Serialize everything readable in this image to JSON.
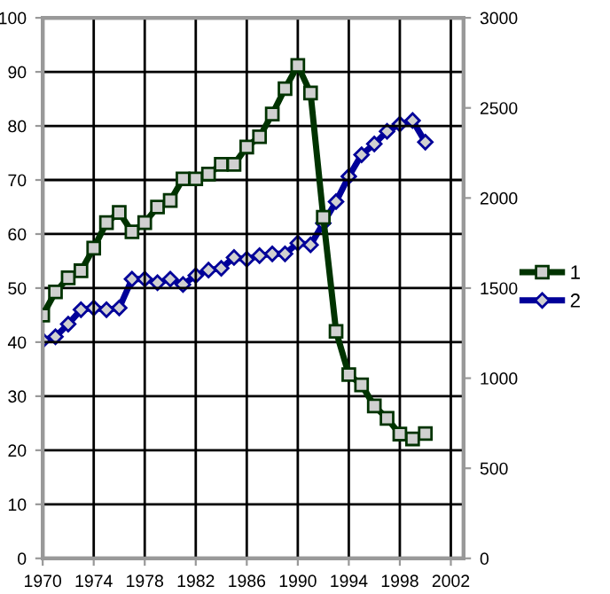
{
  "chart_data": {
    "type": "line",
    "x": [
      1970,
      1971,
      1972,
      1973,
      1974,
      1975,
      1976,
      1977,
      1978,
      1979,
      1980,
      1981,
      1982,
      1983,
      1984,
      1985,
      1986,
      1987,
      1988,
      1989,
      1990,
      1991,
      1992,
      1993,
      1994,
      1995,
      1996,
      1997,
      1998,
      1999,
      2000
    ],
    "series": [
      {
        "name": "1",
        "color": "#003300",
        "marker": "square",
        "values": [
          45,
          49.3,
          51.9,
          53.2,
          57.4,
          62.1,
          64,
          60.4,
          62.1,
          65,
          66.2,
          70.2,
          70.2,
          71.1,
          72.9,
          72.9,
          76.1,
          78,
          82.2,
          86.9,
          91.2,
          86.1,
          63.1,
          42,
          34,
          32.1,
          28.2,
          25.9,
          23,
          22.1,
          23.1
        ]
      },
      {
        "name": "2",
        "color": "#000099",
        "marker": "diamond",
        "axis": "y2",
        "values": [
          1210,
          1230,
          1300,
          1380,
          1390,
          1380,
          1390,
          1550,
          1550,
          1530,
          1550,
          1520,
          1570,
          1600,
          1610,
          1670,
          1660,
          1680,
          1690,
          1690,
          1750,
          1740,
          1860,
          1980,
          2120,
          2240,
          2300,
          2370,
          2410,
          2430,
          2310
        ]
      }
    ],
    "xlim": [
      1970,
      2003
    ],
    "xticks": [
      1970,
      1974,
      1978,
      1982,
      1986,
      1990,
      1994,
      1998,
      2002
    ],
    "ylim": [
      0,
      100
    ],
    "yticks": [
      0,
      10,
      20,
      30,
      40,
      50,
      60,
      70,
      80,
      90,
      100
    ],
    "y2lim": [
      0,
      3000
    ],
    "y2ticks": [
      0,
      500,
      1000,
      1500,
      2000,
      2500,
      3000
    ],
    "grid": true,
    "legend": "right",
    "line_style": "solid"
  }
}
